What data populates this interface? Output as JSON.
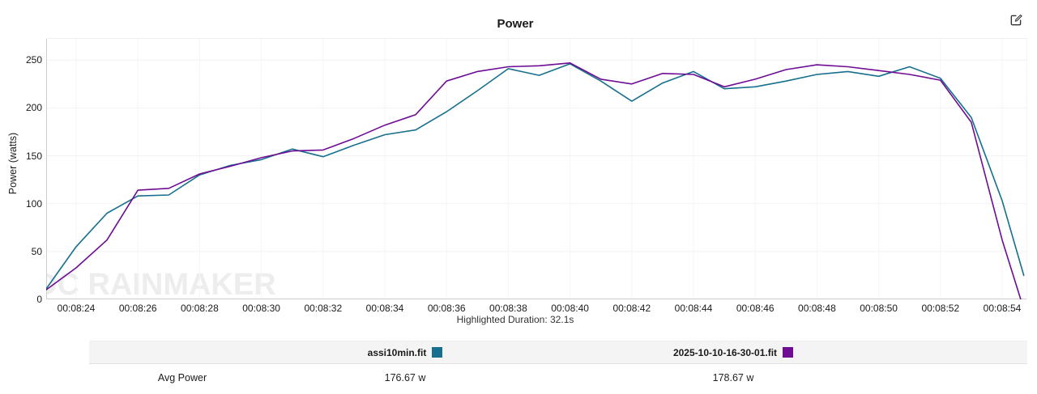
{
  "header": {
    "title": "Power",
    "edit_icon": "edit-compose-icon"
  },
  "chart": {
    "y_axis": {
      "label": "Power (watts)",
      "ticks": [
        0,
        50,
        100,
        150,
        200,
        250
      ]
    },
    "watermark": "DC RAINMAKER",
    "footer_note": "Highlighted Duration: 32.1s"
  },
  "chart_data": {
    "type": "line",
    "title": "Power",
    "xlabel": "",
    "ylabel": "Power (watts)",
    "ylim": [
      0,
      273
    ],
    "grid": true,
    "legend_position": "bottom-table",
    "x_ticks": [
      "00:08:24",
      "00:08:26",
      "00:08:28",
      "00:08:30",
      "00:08:32",
      "00:08:34",
      "00:08:36",
      "00:08:38",
      "00:08:40",
      "00:08:42",
      "00:08:44",
      "00:08:46",
      "00:08:48",
      "00:08:50",
      "00:08:52",
      "00:08:54"
    ],
    "x_unit": "seconds offset from 00:08:23, 1s per sample",
    "series": [
      {
        "name": "assi10min.fit",
        "color": "#176f8e",
        "avg_power_watts": 176.67,
        "points": [
          [
            0,
            11
          ],
          [
            1,
            55
          ],
          [
            2,
            90
          ],
          [
            3,
            108
          ],
          [
            4,
            109
          ],
          [
            5,
            130
          ],
          [
            6,
            140
          ],
          [
            7,
            146
          ],
          [
            8,
            157
          ],
          [
            9,
            149
          ],
          [
            10,
            161
          ],
          [
            11,
            172
          ],
          [
            12,
            177
          ],
          [
            13,
            196
          ],
          [
            14,
            218
          ],
          [
            15,
            241
          ],
          [
            16,
            234
          ],
          [
            17,
            246
          ],
          [
            18,
            228
          ],
          [
            19,
            207
          ],
          [
            20,
            226
          ],
          [
            21,
            238
          ],
          [
            22,
            220
          ],
          [
            23,
            222
          ],
          [
            24,
            228
          ],
          [
            25,
            235
          ],
          [
            26,
            238
          ],
          [
            27,
            233
          ],
          [
            28,
            243
          ],
          [
            29,
            231
          ],
          [
            30,
            190
          ],
          [
            31,
            103
          ],
          [
            31.7,
            25
          ]
        ]
      },
      {
        "name": "2025-10-10-16-30-01.fit",
        "color": "#6e0c94",
        "avg_power_watts": 178.67,
        "points": [
          [
            0,
            10
          ],
          [
            1,
            33
          ],
          [
            2,
            62
          ],
          [
            3,
            114
          ],
          [
            4,
            116
          ],
          [
            5,
            131
          ],
          [
            6,
            139
          ],
          [
            7,
            148
          ],
          [
            8,
            155
          ],
          [
            9,
            156
          ],
          [
            10,
            168
          ],
          [
            11,
            182
          ],
          [
            12,
            193
          ],
          [
            13,
            228
          ],
          [
            14,
            238
          ],
          [
            15,
            243
          ],
          [
            16,
            244
          ],
          [
            17,
            247
          ],
          [
            18,
            230
          ],
          [
            19,
            225
          ],
          [
            20,
            236
          ],
          [
            21,
            235
          ],
          [
            22,
            222
          ],
          [
            23,
            230
          ],
          [
            24,
            240
          ],
          [
            25,
            245
          ],
          [
            26,
            243
          ],
          [
            27,
            239
          ],
          [
            28,
            235
          ],
          [
            29,
            229
          ],
          [
            30,
            185
          ],
          [
            31,
            62
          ],
          [
            31.6,
            0
          ]
        ]
      }
    ],
    "highlighted_duration": "Highlighted Duration: 32.1s"
  },
  "table": {
    "columns": [
      {
        "label": "assi10min.fit",
        "color": "#176f8e"
      },
      {
        "label": "2025-10-10-16-30-01.fit",
        "color": "#6e0c94"
      }
    ],
    "rows": [
      {
        "label": "Avg Power",
        "values": [
          "176.67 w",
          "178.67 w"
        ]
      }
    ]
  }
}
